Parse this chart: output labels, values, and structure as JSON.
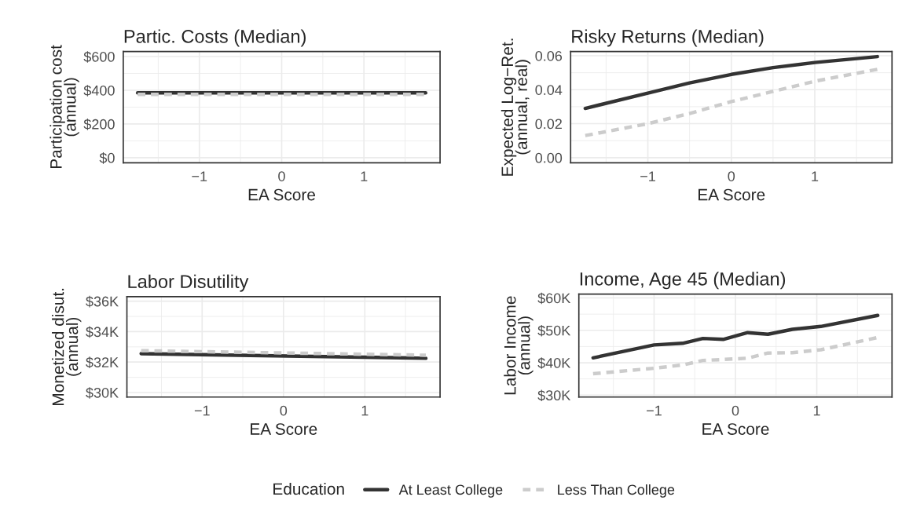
{
  "chart_data": [
    {
      "type": "line",
      "title": "Partic. Costs (Median)",
      "xlabel": "EA Score",
      "ylabel": "Participation cost\n(annual)",
      "legend_title": "Education",
      "legend": "bottom",
      "grid": true,
      "xlim": [
        -1.925,
        1.925
      ],
      "xticks": [
        -1,
        0,
        1
      ],
      "ylim": [
        -30,
        630
      ],
      "yticks": [
        {
          "value": 0,
          "label": "$0"
        },
        {
          "value": 200,
          "label": "$200"
        },
        {
          "value": 400,
          "label": "$400"
        },
        {
          "value": 600,
          "label": "$600"
        }
      ],
      "series": [
        {
          "name": "At Least College",
          "color": "#333333",
          "line_style": "solid",
          "x": [
            -1.75,
            1.75
          ],
          "values": [
            385,
            385
          ]
        },
        {
          "name": "Less Than College",
          "color": "#cccccc",
          "line_style": "dashed",
          "x": [
            -1.75,
            1.75
          ],
          "values": [
            375,
            375
          ]
        }
      ]
    },
    {
      "type": "line",
      "title": "Risky Returns (Median)",
      "xlabel": "EA Score",
      "ylabel": "Expected Log−Ret.\n(annual, real)",
      "grid": true,
      "xlim": [
        -1.925,
        1.925
      ],
      "xticks": [
        -1,
        0,
        1
      ],
      "ylim": [
        -0.003,
        0.0625
      ],
      "yticks": [
        {
          "value": 0,
          "label": "0.00"
        },
        {
          "value": 0.02,
          "label": "0.02"
        },
        {
          "value": 0.04,
          "label": "0.04"
        },
        {
          "value": 0.06,
          "label": "0.06"
        }
      ],
      "series": [
        {
          "name": "At Least College",
          "color": "#333333",
          "line_style": "solid",
          "x": [
            -1.75,
            -1.0,
            -0.5,
            0,
            0.5,
            1.0,
            1.75
          ],
          "values": [
            0.029,
            0.038,
            0.044,
            0.049,
            0.053,
            0.056,
            0.0595
          ]
        },
        {
          "name": "Less Than College",
          "color": "#cccccc",
          "line_style": "dashed",
          "x": [
            -1.75,
            -1.0,
            -0.5,
            0,
            0.5,
            1.0,
            1.75
          ],
          "values": [
            0.013,
            0.02,
            0.026,
            0.033,
            0.039,
            0.045,
            0.052
          ]
        }
      ]
    },
    {
      "type": "line",
      "title": "Labor Disutility",
      "xlabel": "EA Score",
      "ylabel": "Monetized disut.\n(annual)",
      "grid": true,
      "xlim": [
        -1.925,
        1.925
      ],
      "xticks": [
        -1,
        0,
        1
      ],
      "ylim": [
        29700,
        36300
      ],
      "yticks": [
        {
          "value": 30000,
          "label": "$30K"
        },
        {
          "value": 32000,
          "label": "$32K"
        },
        {
          "value": 34000,
          "label": "$34K"
        },
        {
          "value": 36000,
          "label": "$36K"
        }
      ],
      "series": [
        {
          "name": "At Least College",
          "color": "#333333",
          "line_style": "solid",
          "x": [
            -1.75,
            1.75
          ],
          "values": [
            32550,
            32250
          ]
        },
        {
          "name": "Less Than College",
          "color": "#cccccc",
          "line_style": "dashed",
          "x": [
            -1.75,
            1.75
          ],
          "values": [
            32750,
            32450
          ]
        }
      ]
    },
    {
      "type": "line",
      "title": "Income, Age 45 (Median)",
      "xlabel": "EA Score",
      "ylabel": "Labor Income\n(annual)",
      "grid": true,
      "xlim": [
        -1.925,
        1.925
      ],
      "xticks": [
        -1,
        0,
        1
      ],
      "ylim": [
        29400,
        61200
      ],
      "yticks": [
        {
          "value": 30000,
          "label": "$30K"
        },
        {
          "value": 40000,
          "label": "$40K"
        },
        {
          "value": 50000,
          "label": "$50K"
        },
        {
          "value": 60000,
          "label": "$60K"
        }
      ],
      "series": [
        {
          "name": "At Least College",
          "color": "#333333",
          "line_style": "solid",
          "x": [
            -1.75,
            -1.0,
            -0.65,
            -0.4,
            -0.15,
            0.15,
            0.4,
            0.7,
            1.05,
            1.75
          ],
          "values": [
            41500,
            45500,
            46000,
            47500,
            47200,
            49300,
            48800,
            50300,
            51200,
            54600
          ]
        },
        {
          "name": "Less Than College",
          "color": "#cccccc",
          "line_style": "dashed",
          "x": [
            -1.75,
            -1.0,
            -0.65,
            -0.4,
            -0.15,
            0.15,
            0.4,
            0.7,
            1.05,
            1.75
          ],
          "values": [
            36600,
            38300,
            39300,
            40700,
            41000,
            41400,
            43000,
            43100,
            44000,
            47800
          ]
        }
      ]
    }
  ]
}
